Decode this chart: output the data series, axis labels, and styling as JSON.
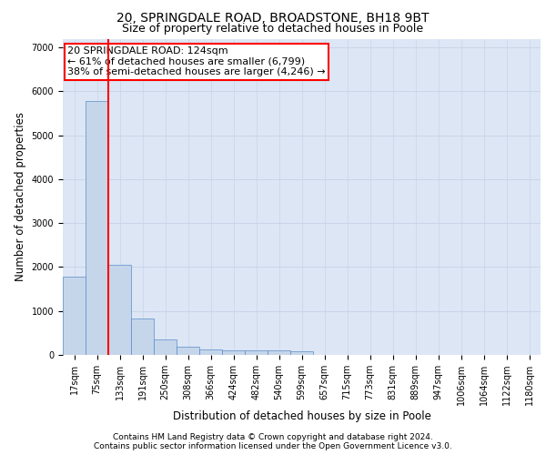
{
  "title_line1": "20, SPRINGDALE ROAD, BROADSTONE, BH18 9BT",
  "title_line2": "Size of property relative to detached houses in Poole",
  "xlabel": "Distribution of detached houses by size in Poole",
  "ylabel": "Number of detached properties",
  "bar_labels": [
    "17sqm",
    "75sqm",
    "133sqm",
    "191sqm",
    "250sqm",
    "308sqm",
    "366sqm",
    "424sqm",
    "482sqm",
    "540sqm",
    "599sqm",
    "657sqm",
    "715sqm",
    "773sqm",
    "831sqm",
    "889sqm",
    "947sqm",
    "1006sqm",
    "1064sqm",
    "1122sqm",
    "1180sqm"
  ],
  "bar_values": [
    1780,
    5780,
    2060,
    820,
    350,
    195,
    130,
    110,
    95,
    95,
    75,
    0,
    0,
    0,
    0,
    0,
    0,
    0,
    0,
    0,
    0
  ],
  "bar_color": "#c5d6ea",
  "bar_edge_color": "#5b8cc8",
  "vline_color": "red",
  "vline_x_data": 1.5,
  "annotation_text": "20 SPRINGDALE ROAD: 124sqm\n← 61% of detached houses are smaller (6,799)\n38% of semi-detached houses are larger (4,246) →",
  "annotation_box_color": "white",
  "annotation_box_edge": "red",
  "ylim": [
    0,
    7200
  ],
  "yticks": [
    0,
    1000,
    2000,
    3000,
    4000,
    5000,
    6000,
    7000
  ],
  "grid_color": "#c8d4e8",
  "background_color": "#dce6f5",
  "footer_line1": "Contains HM Land Registry data © Crown copyright and database right 2024.",
  "footer_line2": "Contains public sector information licensed under the Open Government Licence v3.0.",
  "title_fontsize": 10,
  "subtitle_fontsize": 9,
  "axis_label_fontsize": 8.5,
  "tick_fontsize": 7,
  "annotation_fontsize": 8,
  "footer_fontsize": 6.5
}
